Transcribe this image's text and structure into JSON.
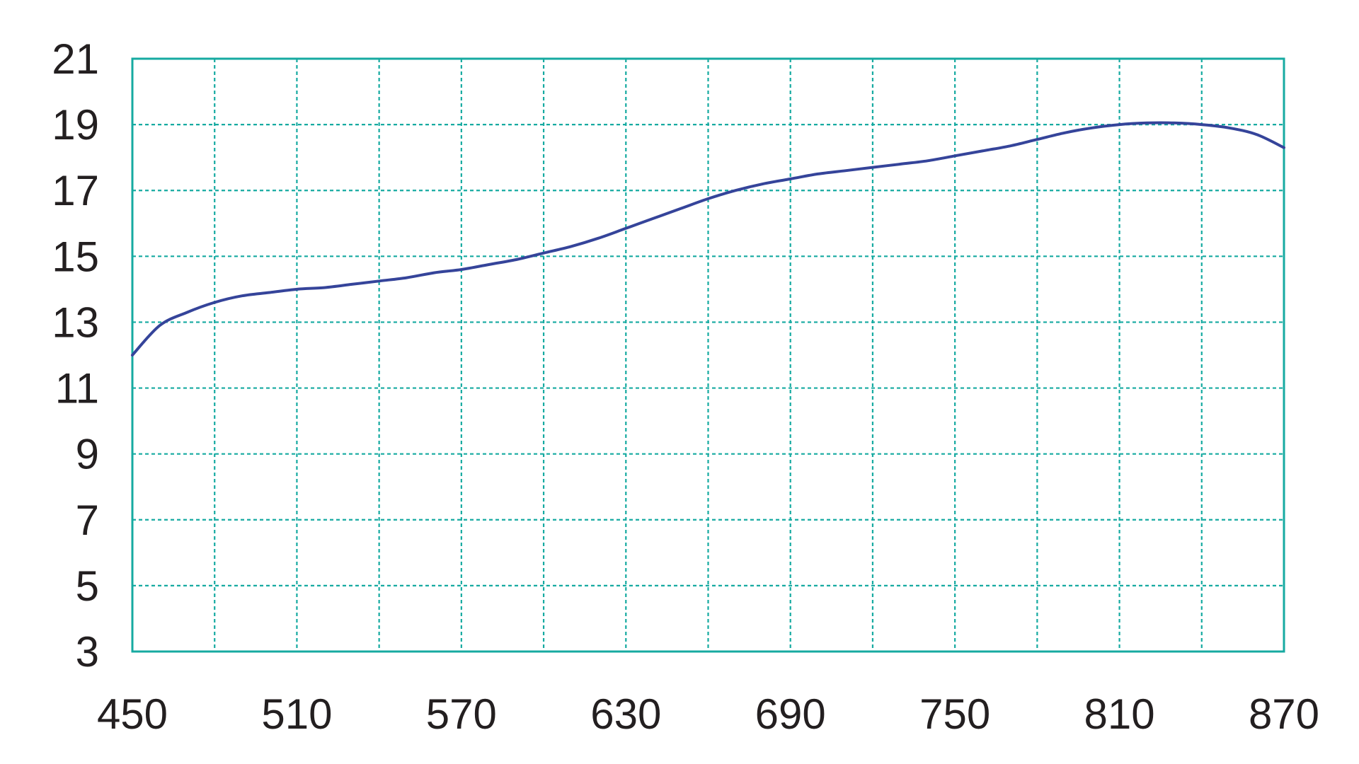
{
  "chart_data": {
    "type": "line",
    "title": "",
    "xlabel": "",
    "ylabel": "",
    "xlim": [
      450,
      870
    ],
    "ylim": [
      3,
      21
    ],
    "x_ticks": [
      "450",
      "510",
      "570",
      "630",
      "690",
      "750",
      "810",
      "870"
    ],
    "y_ticks": [
      "21",
      "19",
      "17",
      "15",
      "13",
      "11",
      "9",
      "7",
      "5",
      "3"
    ],
    "x_grid": [
      480,
      510,
      540,
      570,
      600,
      630,
      660,
      690,
      720,
      750,
      780,
      810,
      840
    ],
    "y_grid": [
      5,
      7,
      9,
      11,
      13,
      15,
      17,
      19
    ],
    "grid": true,
    "colors": {
      "line": "#35449a",
      "grid": "#16aaa1",
      "frame": "#16aaa1",
      "text": "#231f20"
    },
    "series": [
      {
        "x": [
          450,
          460,
          470,
          480,
          490,
          500,
          510,
          520,
          530,
          540,
          550,
          560,
          570,
          580,
          590,
          600,
          610,
          620,
          630,
          640,
          650,
          660,
          670,
          680,
          690,
          700,
          710,
          720,
          730,
          740,
          750,
          760,
          770,
          780,
          790,
          800,
          810,
          820,
          830,
          840,
          850,
          860,
          870
        ],
        "y": [
          12.0,
          12.9,
          13.3,
          13.6,
          13.8,
          13.9,
          14.0,
          14.05,
          14.15,
          14.25,
          14.35,
          14.5,
          14.6,
          14.75,
          14.9,
          15.1,
          15.3,
          15.55,
          15.85,
          16.15,
          16.45,
          16.75,
          17.0,
          17.2,
          17.35,
          17.5,
          17.6,
          17.7,
          17.8,
          17.9,
          18.05,
          18.2,
          18.35,
          18.55,
          18.75,
          18.9,
          19.0,
          19.05,
          19.05,
          19.0,
          18.9,
          18.7,
          18.3
        ]
      }
    ]
  }
}
